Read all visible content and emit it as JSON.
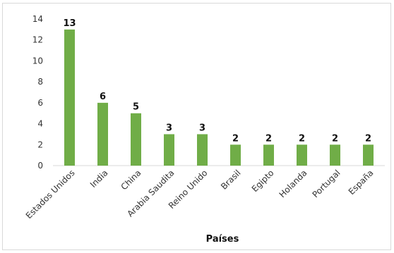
{
  "chart_data": {
    "type": "bar",
    "categories": [
      "Estados Unidos",
      "India",
      "China",
      "Arabia Saudita",
      "Reino Unido",
      "Brasil",
      "Egipto",
      "Holanda",
      "Portugal",
      "España"
    ],
    "values": [
      13,
      6,
      5,
      3,
      3,
      2,
      2,
      2,
      2,
      2
    ],
    "xlabel": "Países",
    "ylabel": "",
    "ylim": [
      0,
      14
    ],
    "yticks": [
      0,
      2,
      4,
      6,
      8,
      10,
      12,
      14
    ],
    "grid": false,
    "legend": "none",
    "bar_color": "#70ad47",
    "data_labels": true
  }
}
